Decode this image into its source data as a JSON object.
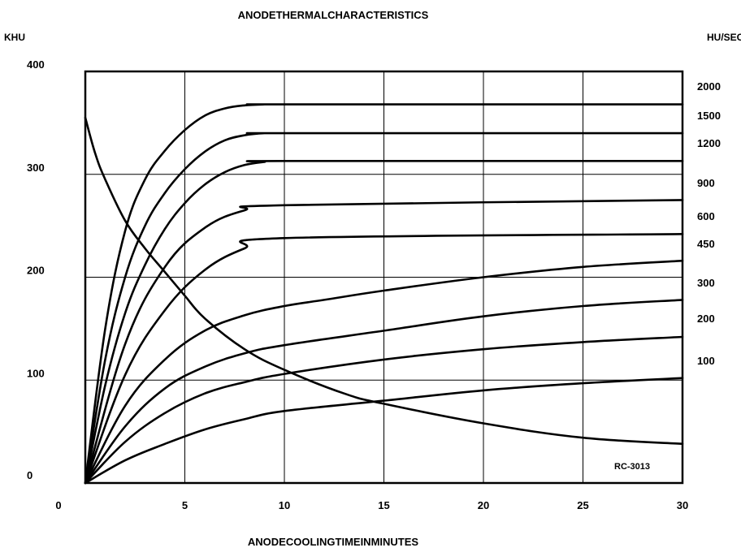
{
  "chart_data": {
    "type": "line",
    "title": "ANODETHERMALCHARACTERISTICS",
    "xlabel": "ANODECOOLINGTIMEINMINUTES",
    "ylabel": "KHU",
    "y2label": "HU/SEC",
    "annotation": "RC-3013",
    "xlim": [
      0,
      30
    ],
    "ylim": [
      0,
      400
    ],
    "xticks": [
      "0",
      "5",
      "10",
      "15",
      "20",
      "25",
      "30"
    ],
    "yticks": [
      "0",
      "100",
      "200",
      "300",
      "400"
    ],
    "grid": true,
    "series": [
      {
        "name": "2000",
        "x": [
          0,
          1,
          2,
          3,
          4,
          5,
          6,
          7,
          8,
          9,
          10,
          30
        ],
        "values": [
          0,
          150,
          245,
          295,
          323,
          343,
          357,
          364,
          367,
          368,
          368,
          368
        ]
      },
      {
        "name": "1500",
        "x": [
          0,
          1,
          2,
          3,
          4,
          5,
          6,
          7,
          8,
          9,
          10,
          30
        ],
        "values": [
          0,
          120,
          200,
          250,
          282,
          305,
          322,
          333,
          338,
          340,
          340,
          340
        ]
      },
      {
        "name": "1200",
        "x": [
          0,
          1,
          2,
          3,
          4,
          5,
          6,
          7,
          8,
          9,
          10,
          30
        ],
        "values": [
          0,
          95,
          165,
          212,
          247,
          272,
          290,
          302,
          309,
          312,
          313,
          313
        ]
      },
      {
        "name": "900",
        "x": [
          0,
          2,
          4,
          6,
          8,
          10,
          30
        ],
        "values": [
          0,
          135,
          210,
          248,
          265,
          270,
          275
        ]
      },
      {
        "name": "600",
        "x": [
          0,
          2,
          4,
          6,
          8,
          10,
          30
        ],
        "values": [
          0,
          105,
          168,
          207,
          228,
          238,
          242
        ]
      },
      {
        "name": "450",
        "x": [
          0,
          2,
          4,
          6,
          8,
          10,
          12,
          15,
          20,
          25,
          30
        ],
        "values": [
          0,
          75,
          120,
          148,
          163,
          172,
          178,
          187,
          200,
          210,
          216
        ]
      },
      {
        "name": "300",
        "x": [
          0,
          2,
          4,
          6,
          8,
          10,
          15,
          20,
          25,
          30
        ],
        "values": [
          0,
          55,
          92,
          113,
          126,
          134,
          148,
          162,
          172,
          178
        ]
      },
      {
        "name": "200",
        "x": [
          0,
          2,
          4,
          6,
          8,
          10,
          15,
          20,
          25,
          30
        ],
        "values": [
          0,
          40,
          68,
          87,
          98,
          106,
          120,
          130,
          137,
          142
        ]
      },
      {
        "name": "100",
        "x": [
          0,
          2,
          4,
          6,
          8,
          10,
          15,
          20,
          25,
          30
        ],
        "values": [
          0,
          22,
          38,
          52,
          62,
          70,
          80,
          90,
          97,
          102
        ]
      },
      {
        "name": "",
        "x": [
          0,
          0.5,
          1,
          2,
          3,
          4,
          5,
          6,
          8,
          10,
          13,
          15,
          20,
          25,
          30
        ],
        "values": [
          355,
          320,
          295,
          255,
          228,
          205,
          182,
          160,
          130,
          110,
          87,
          77,
          58,
          44,
          38
        ]
      }
    ]
  }
}
